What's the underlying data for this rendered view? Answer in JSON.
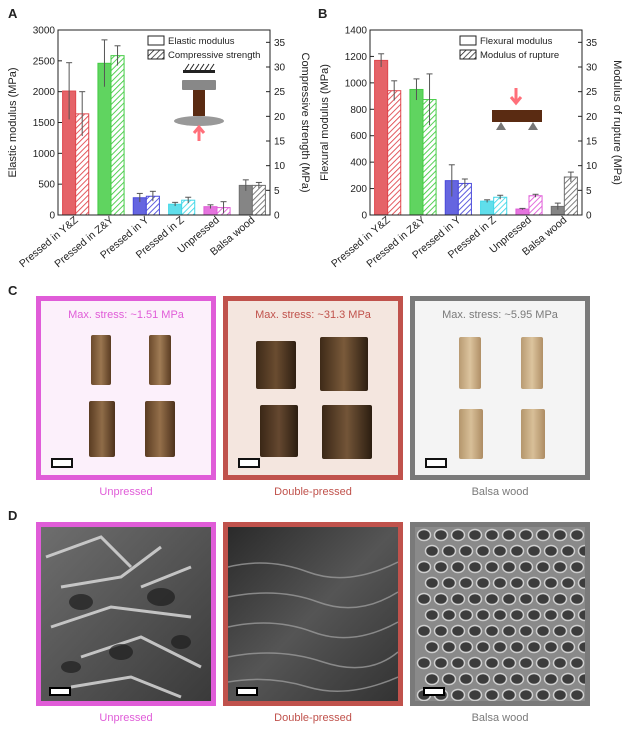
{
  "panels": {
    "a": "A",
    "b": "B",
    "c": "C",
    "d": "D"
  },
  "chart_data": [
    {
      "type": "bar",
      "categories": [
        "Pressed in Y&Z",
        "Pressed in Z&Y",
        "Pressed in Y",
        "Pressed in Z",
        "Unpressed",
        "Balsa wood"
      ],
      "colors": [
        "#e0484e",
        "#44cc44",
        "#4a4adb",
        "#44d8e8",
        "#e05cd8",
        "#707070"
      ],
      "ylabel": "Elastic modulus (MPa)",
      "y2label": "Compressive strength (MPa)",
      "ylim": [
        0,
        3000
      ],
      "y2lim": [
        0,
        37.5
      ],
      "yticks": [
        "0",
        "500",
        "1000",
        "1500",
        "2000",
        "2500",
        "3000"
      ],
      "y2ticks": [
        "0",
        "5",
        "10",
        "15",
        "20",
        "25",
        "30",
        "35"
      ],
      "series": [
        {
          "name": "Elastic modulus",
          "axis": "left",
          "values": [
            2010,
            2460,
            280,
            175,
            135,
            480
          ],
          "errors": [
            460,
            380,
            70,
            30,
            30,
            90
          ]
        },
        {
          "name": "Compressive strength",
          "axis": "right",
          "values": [
            20.5,
            32.3,
            3.8,
            3.0,
            1.5,
            6.0
          ],
          "errors": [
            4.5,
            2.0,
            1.0,
            0.6,
            1.2,
            0.6
          ]
        }
      ]
    },
    {
      "type": "bar",
      "categories": [
        "Pressed in Y&Z",
        "Pressed in Z&Y",
        "Pressed in Y",
        "Pressed in Z",
        "Unpressed",
        "Balsa wood"
      ],
      "colors": [
        "#e0484e",
        "#44cc44",
        "#4a4adb",
        "#44d8e8",
        "#e05cd8",
        "#707070"
      ],
      "ylabel": "Flexural modulus (MPa)",
      "y2label": "Modulus of rupture (MPa)",
      "ylim": [
        0,
        1400
      ],
      "y2lim": [
        0,
        37.5
      ],
      "yticks": [
        "0",
        "200",
        "400",
        "600",
        "800",
        "1000",
        "1200",
        "1400"
      ],
      "y2ticks": [
        "0",
        "5",
        "10",
        "15",
        "20",
        "25",
        "30",
        "35"
      ],
      "series": [
        {
          "name": "Flexural modulus",
          "axis": "left",
          "values": [
            1170,
            950,
            260,
            105,
            45,
            65
          ],
          "errors": [
            50,
            80,
            120,
            10,
            5,
            25
          ]
        },
        {
          "name": "Modulus of rupture",
          "axis": "right",
          "values": [
            25.2,
            23.4,
            6.4,
            3.6,
            3.9,
            7.7
          ],
          "errors": [
            2.0,
            5.2,
            0.9,
            0.4,
            0.3,
            1.0
          ]
        }
      ]
    }
  ],
  "photos": [
    {
      "stress": "Max. stress: ~1.51 MPa",
      "caption": "Unpressed",
      "color": "#e05cd8",
      "bg": "#fcf0fb"
    },
    {
      "stress": "Max. stress: ~31.3 MPa",
      "caption": "Double-pressed",
      "color": "#c0524c",
      "bg": "#f4e6df"
    },
    {
      "stress": "Max. stress: ~5.95 MPa",
      "caption": "Balsa wood",
      "color": "#7a7a7a",
      "bg": "#f4f4f4"
    }
  ],
  "sem": [
    {
      "caption": "Unpressed",
      "color": "#e05cd8"
    },
    {
      "caption": "Double-pressed",
      "color": "#c0524c"
    },
    {
      "caption": "Balsa wood",
      "color": "#7a7a7a"
    }
  ]
}
